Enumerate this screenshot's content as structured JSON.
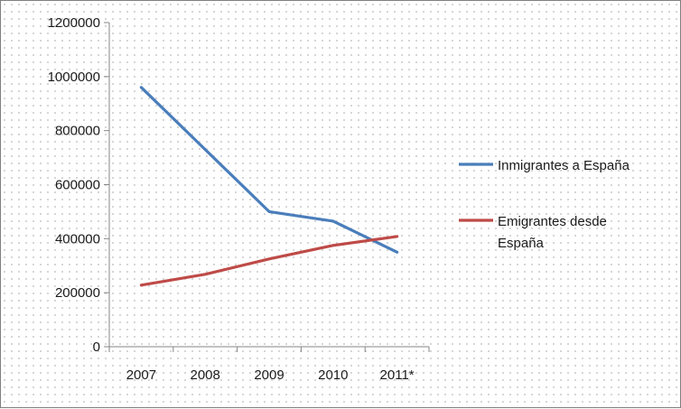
{
  "chart_data": {
    "type": "line",
    "title": "",
    "xlabel": "",
    "ylabel": "",
    "categories": [
      "2007",
      "2008",
      "2009",
      "2010",
      "2011*"
    ],
    "ylim": [
      0,
      1200000
    ],
    "yticks": [
      "0",
      "200000",
      "400000",
      "600000",
      "800000",
      "1000000",
      "1200000"
    ],
    "grid": false,
    "legend_position": "right",
    "series": [
      {
        "name": "Inmigrantes a España",
        "legend_lines": [
          "Inmigrantes a España"
        ],
        "color": "#4a7ebb",
        "values": [
          960000,
          730000,
          500000,
          465000,
          350000
        ]
      },
      {
        "name": "Emigrantes desde España",
        "legend_lines": [
          "Emigrantes desde",
          "España"
        ],
        "color": "#be4b48",
        "values": [
          228000,
          268000,
          325000,
          375000,
          408000
        ]
      }
    ]
  }
}
